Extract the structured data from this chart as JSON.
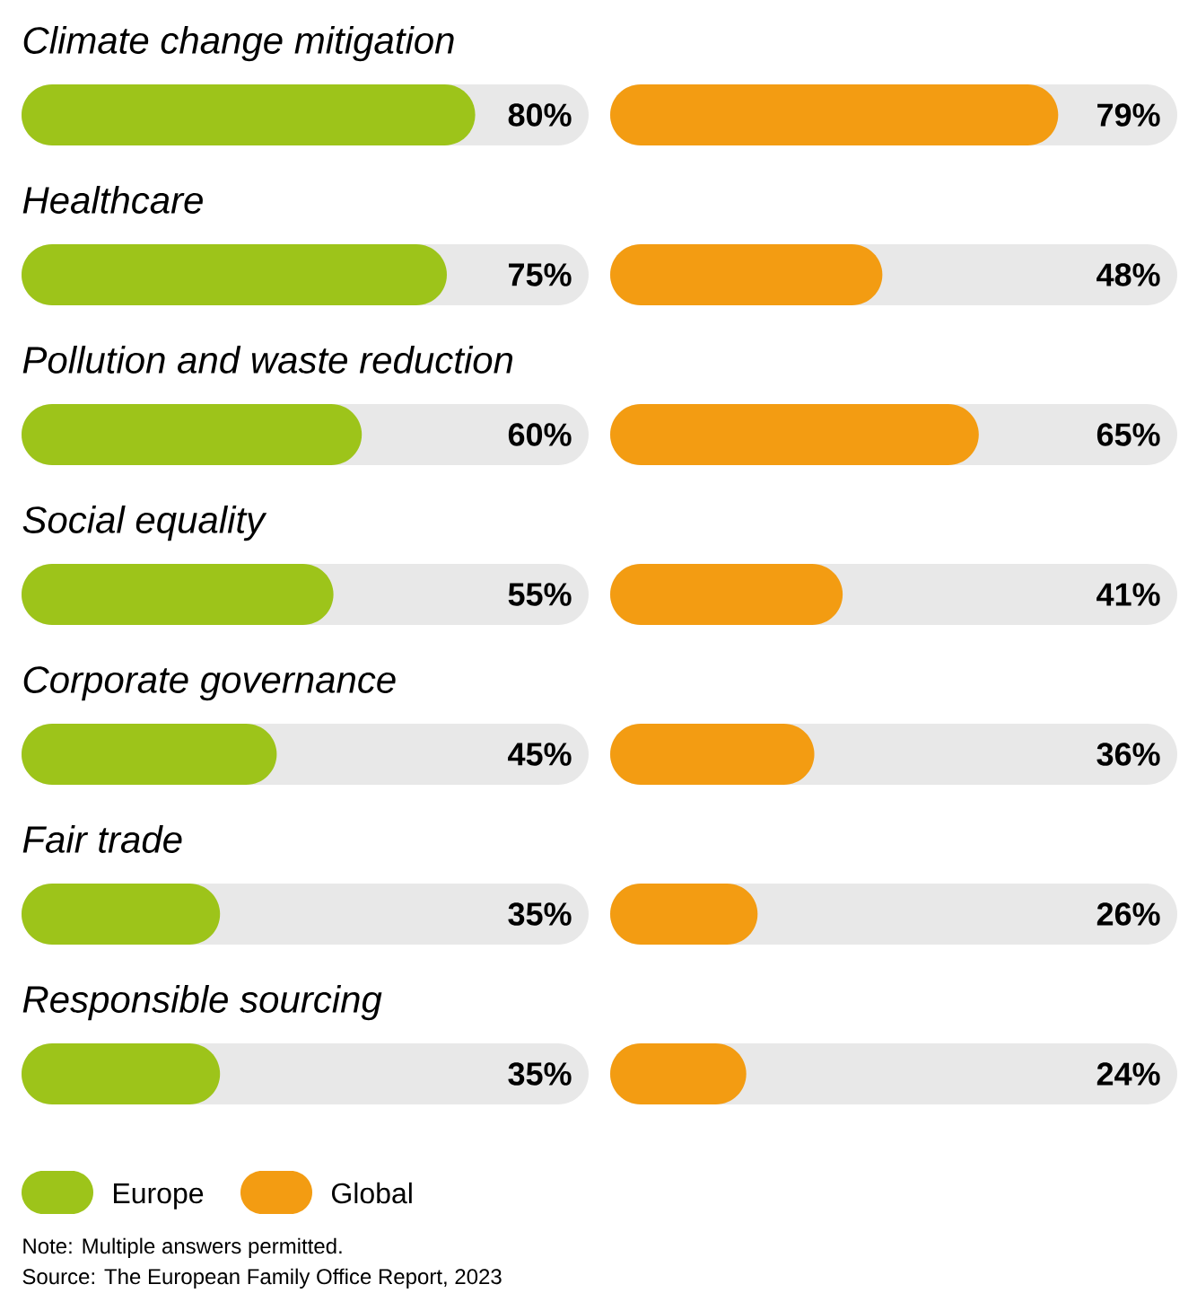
{
  "chart_data": [
    {
      "type": "bar",
      "orientation": "horizontal",
      "categories": [
        "Climate change mitigation",
        "Healthcare",
        "Pollution and waste reduction",
        "Social equality",
        "Corporate governance",
        "Fair trade",
        "Responsible sourcing"
      ],
      "series": [
        {
          "name": "Europe",
          "color": "#9dc41a",
          "values": [
            80,
            75,
            60,
            55,
            45,
            35,
            35
          ],
          "value_labels": [
            "80%",
            "75%",
            "60%",
            "55%",
            "45%",
            "35%",
            "35%"
          ]
        }
      ],
      "xlim": [
        0,
        100
      ],
      "tick_labels": "y",
      "legend": "bottom left",
      "annotations": [
        "Note: Multiple answers permitted.",
        "Source: The European Family Office Report, 2023"
      ]
    },
    {
      "type": "bar",
      "orientation": "horizontal",
      "categories": [
        null,
        null,
        null,
        null,
        null,
        null,
        null
      ],
      "series": [
        {
          "name": "Global",
          "color": "#f39c12",
          "values": [
            79,
            48,
            65,
            41,
            36,
            26,
            24
          ],
          "value_labels": [
            "79%",
            "48%",
            "65%",
            "41%",
            "36%",
            "26%",
            "24%"
          ]
        }
      ],
      "xlim": [
        0,
        100
      ],
      "tick_labels": false,
      "legend": "bottom left"
    }
  ]
}
